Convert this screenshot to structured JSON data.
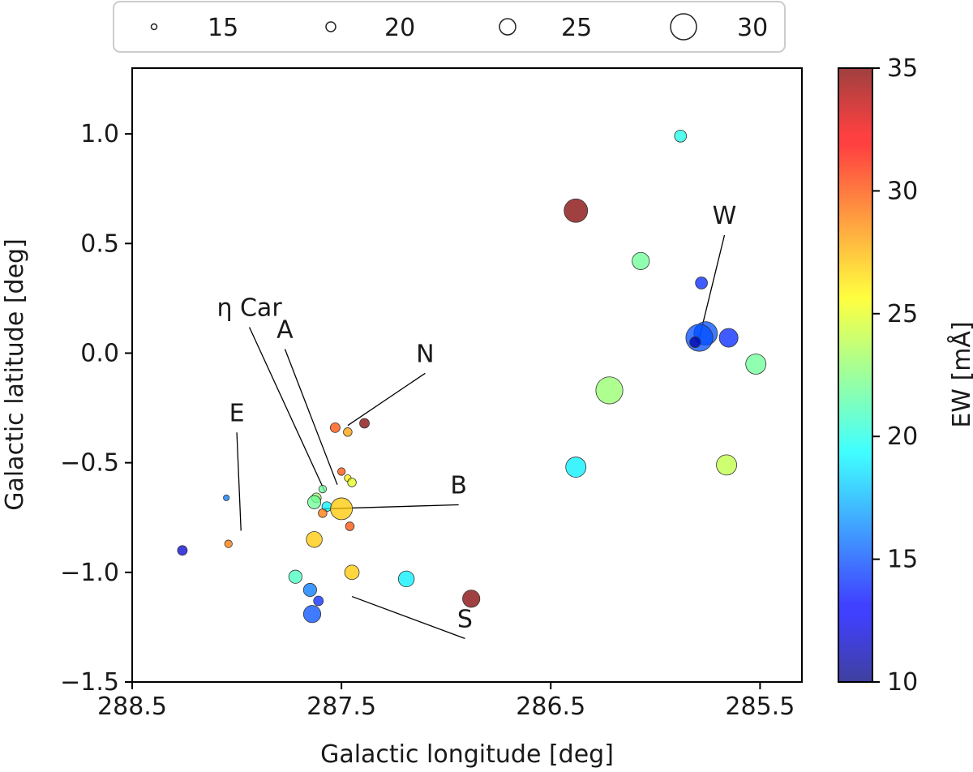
{
  "chart_data": {
    "type": "scatter",
    "xlabel": "Galactic longitude [deg]",
    "ylabel": "Galactic latitude [deg]",
    "xlim": [
      288.5,
      285.3
    ],
    "ylim": [
      -1.5,
      1.3
    ],
    "x_ticks": [
      288.5,
      287.5,
      286.5,
      285.5
    ],
    "x_tick_labels": [
      "288.5",
      "287.5",
      "286.5",
      "285.5"
    ],
    "y_ticks": [
      1.0,
      0.5,
      0.0,
      -0.5,
      -1.0,
      -1.5
    ],
    "y_tick_labels": [
      "1.0",
      "0.5",
      "0.0",
      "−0.5",
      "−1.0",
      "−1.5"
    ],
    "size_legend": {
      "position": "top, above plot",
      "entries": [
        {
          "label": "15",
          "size": 15
        },
        {
          "label": "20",
          "size": 20
        },
        {
          "label": "25",
          "size": 25
        },
        {
          "label": "30",
          "size": 30
        }
      ]
    },
    "colorbar": {
      "label": "EW [mÅ]",
      "range": [
        10,
        35
      ],
      "ticks": [
        10,
        15,
        20,
        25,
        30,
        35
      ],
      "tick_labels": [
        "10",
        "15",
        "20",
        "25",
        "30",
        "35"
      ],
      "colormap": "jet"
    },
    "points": [
      {
        "l": 285.88,
        "b": 0.99,
        "size": 20,
        "ew": 20
      },
      {
        "l": 286.38,
        "b": 0.65,
        "size": 28,
        "ew": 35
      },
      {
        "l": 286.07,
        "b": 0.42,
        "size": 24,
        "ew": 22
      },
      {
        "l": 285.78,
        "b": 0.32,
        "size": 20,
        "ew": 14
      },
      {
        "l": 285.76,
        "b": 0.09,
        "size": 28,
        "ew": 15
      },
      {
        "l": 285.79,
        "b": 0.07,
        "size": 30,
        "ew": 15
      },
      {
        "l": 285.81,
        "b": 0.05,
        "size": 19,
        "ew": 11
      },
      {
        "l": 285.65,
        "b": 0.07,
        "size": 25,
        "ew": 14
      },
      {
        "l": 285.52,
        "b": -0.05,
        "size": 26,
        "ew": 22
      },
      {
        "l": 286.22,
        "b": -0.17,
        "size": 30,
        "ew": 23
      },
      {
        "l": 286.38,
        "b": -0.52,
        "size": 26,
        "ew": 19
      },
      {
        "l": 285.66,
        "b": -0.51,
        "size": 26,
        "ew": 24
      },
      {
        "l": 287.39,
        "b": -0.32,
        "size": 18,
        "ew": 35
      },
      {
        "l": 287.53,
        "b": -0.34,
        "size": 18,
        "ew": 30
      },
      {
        "l": 287.47,
        "b": -0.36,
        "size": 17,
        "ew": 28
      },
      {
        "l": 287.5,
        "b": -0.54,
        "size": 16,
        "ew": 30
      },
      {
        "l": 287.47,
        "b": -0.57,
        "size": 15,
        "ew": 26
      },
      {
        "l": 287.45,
        "b": -0.59,
        "size": 17,
        "ew": 25
      },
      {
        "l": 287.59,
        "b": -0.62,
        "size": 16,
        "ew": 22
      },
      {
        "l": 287.62,
        "b": -0.66,
        "size": 18,
        "ew": 23
      },
      {
        "l": 287.63,
        "b": -0.68,
        "size": 21,
        "ew": 22
      },
      {
        "l": 287.57,
        "b": -0.7,
        "size": 18,
        "ew": 19
      },
      {
        "l": 287.5,
        "b": -0.71,
        "size": 27,
        "ew": 27
      },
      {
        "l": 287.59,
        "b": -0.73,
        "size": 17,
        "ew": 29
      },
      {
        "l": 287.46,
        "b": -0.79,
        "size": 17,
        "ew": 30
      },
      {
        "l": 287.63,
        "b": -0.85,
        "size": 23,
        "ew": 27
      },
      {
        "l": 288.05,
        "b": -0.66,
        "size": 14,
        "ew": 16
      },
      {
        "l": 288.04,
        "b": -0.87,
        "size": 16,
        "ew": 29
      },
      {
        "l": 288.26,
        "b": -0.9,
        "size": 18,
        "ew": 12
      },
      {
        "l": 287.72,
        "b": -1.02,
        "size": 21,
        "ew": 21
      },
      {
        "l": 287.45,
        "b": -1.0,
        "size": 22,
        "ew": 27
      },
      {
        "l": 287.19,
        "b": -1.03,
        "size": 23,
        "ew": 19
      },
      {
        "l": 287.65,
        "b": -1.08,
        "size": 21,
        "ew": 16
      },
      {
        "l": 287.61,
        "b": -1.13,
        "size": 18,
        "ew": 14
      },
      {
        "l": 287.64,
        "b": -1.19,
        "size": 24,
        "ew": 15
      },
      {
        "l": 286.88,
        "b": -1.12,
        "size": 24,
        "ew": 35
      }
    ],
    "annotations": [
      {
        "text": "W",
        "text_l": 285.67,
        "text_b": 0.59,
        "target_l": 285.79,
        "target_b": 0.07
      },
      {
        "text": "η Car",
        "text_l": 287.94,
        "text_b": 0.17,
        "target_l": 287.58,
        "target_b": -0.63
      },
      {
        "text": "A",
        "text_l": 287.77,
        "text_b": 0.07,
        "target_l": 287.52,
        "target_b": -0.6
      },
      {
        "text": "N",
        "text_l": 287.1,
        "text_b": -0.04,
        "target_l": 287.47,
        "target_b": -0.33
      },
      {
        "text": "E",
        "text_l": 288.0,
        "text_b": -0.31,
        "target_l": 287.98,
        "target_b": -0.81
      },
      {
        "text": "B",
        "text_l": 286.94,
        "text_b": -0.64,
        "target_l": 287.58,
        "target_b": -0.71
      },
      {
        "text": "S",
        "text_l": 286.91,
        "text_b": -1.25,
        "target_l": 287.45,
        "target_b": -1.11
      }
    ]
  }
}
